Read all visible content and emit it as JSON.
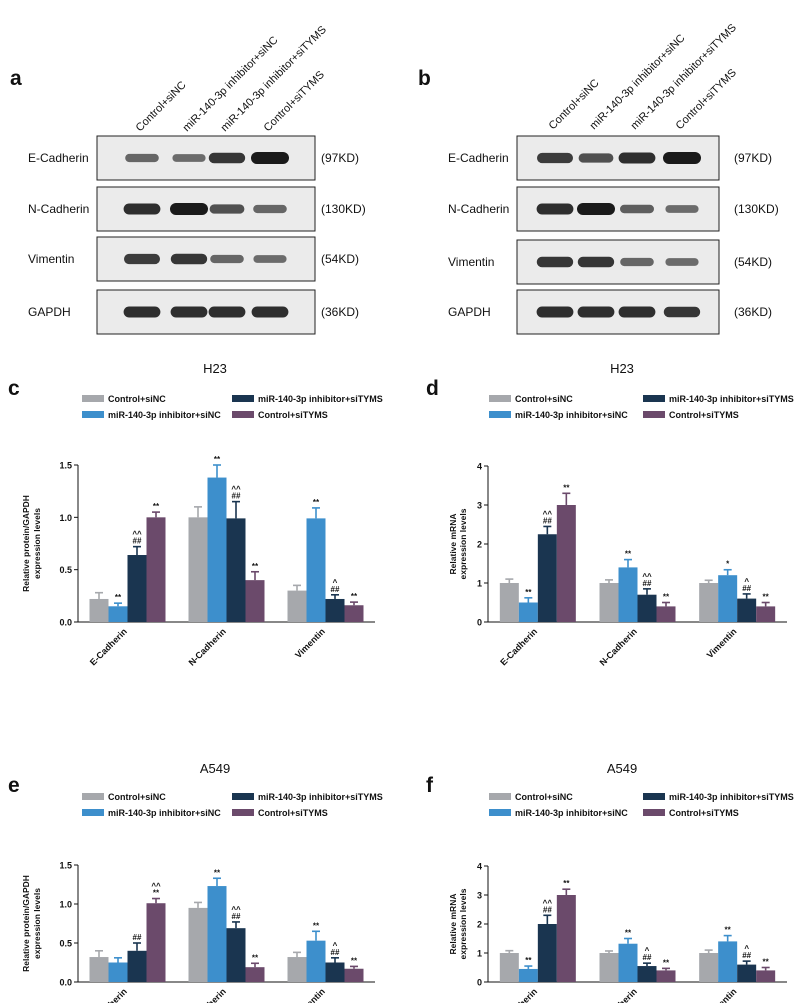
{
  "colors": {
    "control_sinc": "#a6a8ac",
    "inhibitor_sinc": "#3d8fcc",
    "inhibitor_sitYMS": "#1a3550",
    "control_sitYMS": "#6b4a6b",
    "blot_bg": "#ebebeb",
    "band": "#1a1a1a"
  },
  "legend_labels": [
    "Control+siNC",
    "miR-140-3p inhibitor+siNC",
    "miR-140-3p inhibitor+siTYMS",
    "Control+siTYMS"
  ],
  "blots": [
    {
      "panel_letter": "a",
      "lanes": [
        "Control+siNC",
        "miR-140-3p inhibitor+siNC",
        "miR-140-3p inhibitor+siTYMS",
        "Control+siTYMS"
      ],
      "rows": [
        {
          "protein": "E-Cadherin",
          "mw": "(97KD)",
          "intensities": [
            0.45,
            0.4,
            0.8,
            1.0
          ]
        },
        {
          "protein": "N-Cadherin",
          "mw": "(130KD)",
          "intensities": [
            0.85,
            1.0,
            0.6,
            0.45
          ]
        },
        {
          "protein": "Vimentin",
          "mw": "(54KD)",
          "intensities": [
            0.75,
            0.8,
            0.45,
            0.4
          ]
        },
        {
          "protein": "GAPDH",
          "mw": "(36KD)",
          "intensities": [
            0.85,
            0.85,
            0.85,
            0.85
          ]
        }
      ]
    },
    {
      "panel_letter": "b",
      "lanes": [
        "Control+siNC",
        "miR-140-3p inhibitor+siNC",
        "miR-140-3p inhibitor+siTYMS",
        "Control+siTYMS"
      ],
      "rows": [
        {
          "protein": "E-Cadherin",
          "mw": "(97KD)",
          "intensities": [
            0.75,
            0.6,
            0.85,
            1.0
          ]
        },
        {
          "protein": "N-Cadherin",
          "mw": "(130KD)",
          "intensities": [
            0.85,
            1.0,
            0.5,
            0.4
          ]
        },
        {
          "protein": "Vimentin",
          "mw": "(54KD)",
          "intensities": [
            0.8,
            0.8,
            0.45,
            0.4
          ]
        },
        {
          "protein": "GAPDH",
          "mw": "(36KD)",
          "intensities": [
            0.85,
            0.85,
            0.85,
            0.8
          ]
        }
      ]
    }
  ],
  "chart_data": [
    {
      "panel_letter": "c",
      "type": "bar",
      "title": "H23",
      "ylabel": "Relative protein/GAPDH expression levels",
      "ylim": [
        0,
        1.5
      ],
      "yticks": [
        "0.0",
        "0.5",
        "1.0",
        "1.5"
      ],
      "ytick_values": [
        0,
        0.5,
        1.0,
        1.5
      ],
      "categories": [
        "E-Cadherin",
        "N-Cadherin",
        "Vimentin"
      ],
      "series": [
        {
          "name": "Control+siNC",
          "values": [
            0.22,
            1.0,
            0.3
          ],
          "errors": [
            0.06,
            0.1,
            0.05
          ],
          "annotations": [
            "",
            "",
            ""
          ]
        },
        {
          "name": "miR-140-3p inhibitor+siNC",
          "values": [
            0.15,
            1.38,
            0.99
          ],
          "errors": [
            0.03,
            0.12,
            0.1
          ],
          "annotations": [
            "**",
            "**",
            "**"
          ]
        },
        {
          "name": "miR-140-3p inhibitor+siTYMS",
          "values": [
            0.64,
            0.99,
            0.22
          ],
          "errors": [
            0.08,
            0.16,
            0.04
          ],
          "annotations": [
            "^^\n##",
            "^^\n##",
            "^\n##"
          ]
        },
        {
          "name": "Control+siTYMS",
          "values": [
            1.0,
            0.4,
            0.16
          ],
          "errors": [
            0.05,
            0.08,
            0.03
          ],
          "annotations": [
            "**",
            "**",
            "**"
          ]
        }
      ]
    },
    {
      "panel_letter": "d",
      "type": "bar",
      "title": "H23",
      "ylabel": "Relative mRNA expression levels",
      "ylim": [
        0,
        4
      ],
      "yticks": [
        "0",
        "1",
        "2",
        "3",
        "4"
      ],
      "ytick_values": [
        0,
        1,
        2,
        3,
        4
      ],
      "categories": [
        "E-Cadherin",
        "N-Cadherin",
        "Vimentin"
      ],
      "series": [
        {
          "name": "Control+siNC",
          "values": [
            1.0,
            1.0,
            1.0
          ],
          "errors": [
            0.1,
            0.08,
            0.07
          ],
          "annotations": [
            "",
            "",
            ""
          ]
        },
        {
          "name": "miR-140-3p inhibitor+siNC",
          "values": [
            0.5,
            1.4,
            1.2
          ],
          "errors": [
            0.12,
            0.2,
            0.14
          ],
          "annotations": [
            "**",
            "**",
            "*"
          ]
        },
        {
          "name": "miR-140-3p inhibitor+siTYMS",
          "values": [
            2.25,
            0.7,
            0.6
          ],
          "errors": [
            0.2,
            0.15,
            0.12
          ],
          "annotations": [
            "^^\n##",
            "^^\n##",
            "^\n##"
          ]
        },
        {
          "name": "Control+siTYMS",
          "values": [
            3.0,
            0.4,
            0.4
          ],
          "errors": [
            0.3,
            0.1,
            0.1
          ],
          "annotations": [
            "**",
            "**",
            "**"
          ]
        }
      ]
    },
    {
      "panel_letter": "e",
      "type": "bar",
      "title": "A549",
      "ylabel": "Relative protein/GAPDH expression levels",
      "ylim": [
        0,
        1.5
      ],
      "yticks": [
        "0.0",
        "0.5",
        "1.0",
        "1.5"
      ],
      "ytick_values": [
        0,
        0.5,
        1.0,
        1.5
      ],
      "categories": [
        "E-Cadherin",
        "N-Cadherin",
        "Vimentin"
      ],
      "series": [
        {
          "name": "Control+siNC",
          "values": [
            0.32,
            0.95,
            0.32
          ],
          "errors": [
            0.08,
            0.07,
            0.06
          ],
          "annotations": [
            "",
            "",
            ""
          ]
        },
        {
          "name": "miR-140-3p inhibitor+siNC",
          "values": [
            0.25,
            1.23,
            0.53
          ],
          "errors": [
            0.06,
            0.1,
            0.12
          ],
          "annotations": [
            "",
            "**",
            "**"
          ]
        },
        {
          "name": "miR-140-3p inhibitor+siTYMS",
          "values": [
            0.4,
            0.69,
            0.25
          ],
          "errors": [
            0.1,
            0.08,
            0.06
          ],
          "annotations": [
            "##",
            "^^\n##",
            "^\n##"
          ]
        },
        {
          "name": "Control+siTYMS",
          "values": [
            1.01,
            0.19,
            0.17
          ],
          "errors": [
            0.06,
            0.05,
            0.03
          ],
          "annotations": [
            "^^\n**",
            "**",
            "**"
          ]
        }
      ]
    },
    {
      "panel_letter": "f",
      "type": "bar",
      "title": "A549",
      "ylabel": "Relative mRNA expression levels",
      "ylim": [
        0,
        4
      ],
      "yticks": [
        "0",
        "1",
        "2",
        "3",
        "4"
      ],
      "ytick_values": [
        0,
        1,
        2,
        3,
        4
      ],
      "categories": [
        "E-Cadherin",
        "N-Cadherin",
        "Vimentin"
      ],
      "series": [
        {
          "name": "Control+siNC",
          "values": [
            1.0,
            1.0,
            1.0
          ],
          "errors": [
            0.08,
            0.07,
            0.1
          ],
          "annotations": [
            "",
            "",
            ""
          ]
        },
        {
          "name": "miR-140-3p inhibitor+siNC",
          "values": [
            0.45,
            1.32,
            1.4
          ],
          "errors": [
            0.1,
            0.18,
            0.2
          ],
          "annotations": [
            "**",
            "**",
            "**"
          ]
        },
        {
          "name": "miR-140-3p inhibitor+siTYMS",
          "values": [
            2.0,
            0.55,
            0.6
          ],
          "errors": [
            0.3,
            0.1,
            0.12
          ],
          "annotations": [
            "^^\n##",
            "^\n##",
            "^\n##"
          ]
        },
        {
          "name": "Control+siTYMS",
          "values": [
            3.0,
            0.4,
            0.4
          ],
          "errors": [
            0.2,
            0.07,
            0.1
          ],
          "annotations": [
            "**",
            "**",
            "**"
          ]
        }
      ]
    }
  ]
}
